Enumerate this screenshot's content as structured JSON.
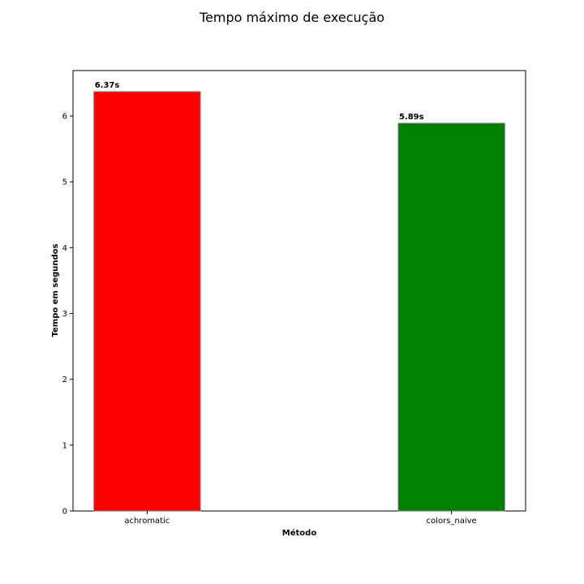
{
  "chart_data": {
    "type": "bar",
    "title": "Tempo máximo de execução",
    "xlabel": "Método",
    "ylabel": "Tempo em segundos",
    "categories": [
      "achromatic",
      "colors_naive"
    ],
    "values": [
      6.37,
      5.89
    ],
    "value_labels": [
      "6.37s",
      "5.89s"
    ],
    "bar_colors": [
      "#ff0000",
      "#008000"
    ],
    "bar_edge_color": "#808080",
    "ylim": [
      0,
      6.69
    ],
    "yticks": [
      0,
      1,
      2,
      3,
      4,
      5,
      6
    ],
    "ytick_labels": [
      "0",
      "1",
      "2",
      "3",
      "4",
      "5",
      "6"
    ],
    "grid": false,
    "legend": null
  }
}
